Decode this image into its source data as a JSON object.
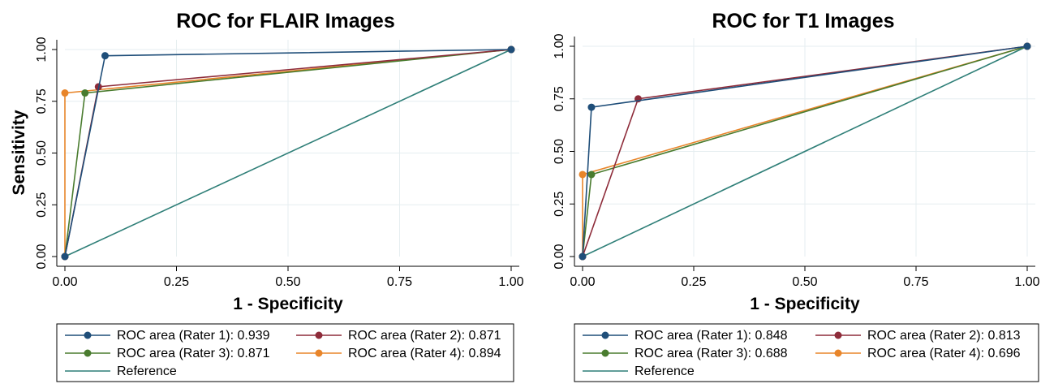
{
  "chart_data": [
    {
      "type": "line",
      "title": "ROC for FLAIR Images",
      "xlabel": "1 - Specificity",
      "ylabel": "Sensitivity",
      "xlim": [
        0,
        1
      ],
      "ylim": [
        0,
        1
      ],
      "x_ticks": [
        "0.00",
        "0.25",
        "0.50",
        "0.75",
        "1.00"
      ],
      "y_ticks": [
        "0.00",
        "0.25",
        "0.50",
        "0.75",
        "1.00"
      ],
      "grid": true,
      "legend_position": "bottom",
      "series": [
        {
          "name": "ROC area (Rater 1): 0.939",
          "color": "#1f4e79",
          "markers": true,
          "x": [
            0,
            0.09,
            1
          ],
          "y": [
            0,
            0.97,
            1
          ]
        },
        {
          "name": "ROC area (Rater 2): 0.871",
          "color": "#8e2c3a",
          "markers": true,
          "x": [
            0,
            0.075,
            1
          ],
          "y": [
            0,
            0.82,
            1
          ]
        },
        {
          "name": "ROC area (Rater 3): 0.871",
          "color": "#4a7c2f",
          "markers": true,
          "x": [
            0,
            0.045,
            1
          ],
          "y": [
            0,
            0.79,
            1
          ]
        },
        {
          "name": "ROC area (Rater 4): 0.894",
          "color": "#e8852a",
          "markers": true,
          "x": [
            0,
            0,
            1
          ],
          "y": [
            0,
            0.79,
            1
          ]
        },
        {
          "name": "Reference",
          "color": "#2f7f78",
          "markers": false,
          "x": [
            0,
            1
          ],
          "y": [
            0,
            1
          ]
        }
      ]
    },
    {
      "type": "line",
      "title": "ROC for T1 Images",
      "xlabel": "1 - Specificity",
      "ylabel": "",
      "xlim": [
        0,
        1
      ],
      "ylim": [
        0,
        1
      ],
      "x_ticks": [
        "0.00",
        "0.25",
        "0.50",
        "0.75",
        "1.00"
      ],
      "y_ticks": [
        "0.00",
        "0.25",
        "0.50",
        "0.75",
        "1.00"
      ],
      "grid": true,
      "legend_position": "bottom",
      "series": [
        {
          "name": "ROC area (Rater 1): 0.848",
          "color": "#1f4e79",
          "markers": true,
          "x": [
            0,
            0.02,
            1
          ],
          "y": [
            0,
            0.71,
            1
          ]
        },
        {
          "name": "ROC area (Rater 2): 0.813",
          "color": "#8e2c3a",
          "markers": true,
          "x": [
            0,
            0.125,
            1
          ],
          "y": [
            0,
            0.75,
            1
          ]
        },
        {
          "name": "ROC area (Rater 3): 0.688",
          "color": "#4a7c2f",
          "markers": true,
          "x": [
            0,
            0.02,
            1
          ],
          "y": [
            0,
            0.39,
            1
          ]
        },
        {
          "name": "ROC area (Rater 4): 0.696",
          "color": "#e8852a",
          "markers": true,
          "x": [
            0,
            0,
            1
          ],
          "y": [
            0,
            0.39,
            1
          ]
        },
        {
          "name": "Reference",
          "color": "#2f7f78",
          "markers": false,
          "x": [
            0,
            1
          ],
          "y": [
            0,
            1
          ]
        }
      ]
    }
  ]
}
